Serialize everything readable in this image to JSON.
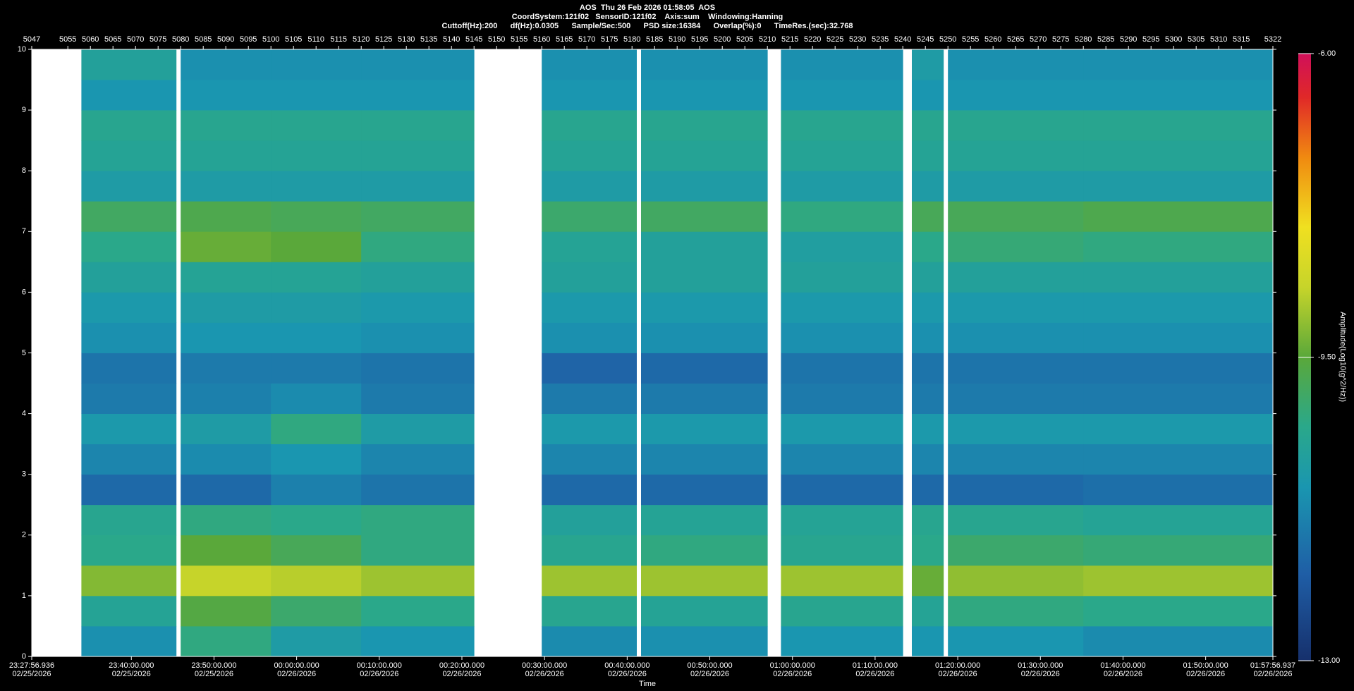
{
  "chart_data": {
    "type": "heatmap",
    "header": [
      "AOS  Thu 26 Feb 2026 01:58:05  AOS",
      "CoordSystem:121f02   SensorID:121f02    Axis:sum    Windowing:Hanning",
      "Cuttoff(Hz):200      df(Hz):0.0305      Sample/Sec:500      PSD size:16384      Overlap(%):0      TimeRes.(sec):32.768"
    ],
    "x_label": "Time",
    "colorbar_label": "Amplitude(Log10(g^2/Hz))",
    "x": [
      5047,
      5058,
      5079,
      5080,
      5100,
      5120,
      5145,
      5160,
      5181,
      5182,
      5210,
      5213,
      5240,
      5242,
      5249,
      5250,
      5280,
      5322
    ],
    "y": [
      0,
      0.5,
      1,
      1.5,
      2,
      2.5,
      3,
      3.5,
      4,
      4.5,
      5,
      5.5,
      6,
      6.5,
      7,
      7.5,
      8,
      8.5,
      9,
      9.5,
      10
    ],
    "values": [
      [
        null,
        -11.1,
        null,
        -10.2,
        -10.8,
        -11.0,
        null,
        -11.2,
        null,
        -11.1,
        null,
        -11.0,
        null,
        -11.0,
        null,
        -11.0,
        -11.2
      ],
      [
        null,
        -10.5,
        null,
        -9.6,
        -10.0,
        -10.3,
        null,
        -10.4,
        null,
        -10.5,
        null,
        -10.4,
        null,
        -10.5,
        null,
        -10.2,
        -10.3
      ],
      [
        null,
        -9.2,
        null,
        -8.7,
        -8.8,
        -9.0,
        null,
        -9.0,
        null,
        -9.0,
        null,
        -9.0,
        null,
        -9.4,
        null,
        -9.1,
        -9.0
      ],
      [
        null,
        -10.3,
        null,
        -9.5,
        -9.8,
        -10.2,
        null,
        -10.4,
        null,
        -10.2,
        null,
        -10.4,
        null,
        -10.3,
        null,
        -10.0,
        -10.1
      ],
      [
        null,
        -10.4,
        null,
        -10.2,
        -10.3,
        -10.2,
        null,
        -10.6,
        null,
        -10.5,
        null,
        -10.5,
        null,
        -10.4,
        null,
        -10.4,
        -10.5
      ],
      [
        null,
        -11.8,
        null,
        -11.8,
        -11.4,
        -11.6,
        null,
        -11.8,
        null,
        -11.8,
        null,
        -11.8,
        null,
        -11.8,
        null,
        -11.8,
        -11.7
      ],
      [
        null,
        -11.3,
        null,
        -11.2,
        -11.0,
        -11.3,
        null,
        -11.3,
        null,
        -11.3,
        null,
        -11.3,
        null,
        -11.3,
        null,
        -11.3,
        -11.3
      ],
      [
        null,
        -10.9,
        null,
        -10.8,
        -10.2,
        -10.8,
        null,
        -10.9,
        null,
        -10.9,
        null,
        -10.9,
        null,
        -10.9,
        null,
        -10.9,
        -10.9
      ],
      [
        null,
        -11.5,
        null,
        -11.4,
        -11.2,
        -11.5,
        null,
        -11.5,
        null,
        -11.5,
        null,
        -11.5,
        null,
        -11.5,
        null,
        -11.5,
        -11.5
      ],
      [
        null,
        -11.6,
        null,
        -11.5,
        -11.5,
        -11.6,
        null,
        -11.9,
        null,
        -11.8,
        null,
        -11.6,
        null,
        -11.6,
        null,
        -11.6,
        -11.6
      ],
      [
        null,
        -11.1,
        null,
        -11.0,
        -11.0,
        -11.1,
        null,
        -11.1,
        null,
        -11.1,
        null,
        -11.1,
        null,
        -11.1,
        null,
        -11.1,
        -11.1
      ],
      [
        null,
        -10.9,
        null,
        -10.8,
        -10.8,
        -10.9,
        null,
        -10.9,
        null,
        -10.9,
        null,
        -10.9,
        null,
        -10.9,
        null,
        -10.9,
        -10.9
      ],
      [
        null,
        -10.6,
        null,
        -10.5,
        -10.5,
        -10.6,
        null,
        -10.6,
        null,
        -10.6,
        null,
        -10.6,
        null,
        -10.6,
        null,
        -10.6,
        -10.6
      ],
      [
        null,
        -10.3,
        null,
        -9.4,
        -9.5,
        -10.2,
        null,
        -10.5,
        null,
        -10.6,
        null,
        -10.7,
        null,
        -10.3,
        null,
        -10.1,
        -10.2
      ],
      [
        null,
        -9.9,
        null,
        -9.7,
        -9.8,
        -9.9,
        null,
        -10.0,
        null,
        -9.9,
        null,
        -10.2,
        null,
        -9.8,
        null,
        -9.8,
        -9.7
      ],
      [
        null,
        -10.8,
        null,
        -10.8,
        -10.8,
        -10.8,
        null,
        -10.8,
        null,
        -10.8,
        null,
        -10.8,
        null,
        -10.8,
        null,
        -10.8,
        -10.8
      ],
      [
        null,
        -10.5,
        null,
        -10.5,
        -10.5,
        -10.5,
        null,
        -10.5,
        null,
        -10.5,
        null,
        -10.5,
        null,
        -10.5,
        null,
        -10.5,
        -10.5
      ],
      [
        null,
        -10.4,
        null,
        -10.4,
        -10.4,
        -10.4,
        null,
        -10.4,
        null,
        -10.4,
        null,
        -10.4,
        null,
        -10.4,
        null,
        -10.4,
        -10.4
      ],
      [
        null,
        -11.0,
        null,
        -11.0,
        -11.0,
        -11.0,
        null,
        -11.0,
        null,
        -11.0,
        null,
        -11.0,
        null,
        -11.0,
        null,
        -11.0,
        -11.0
      ],
      [
        null,
        -10.6,
        null,
        -11.1,
        -11.1,
        -11.1,
        null,
        -11.1,
        null,
        -11.1,
        null,
        -11.1,
        null,
        -10.8,
        null,
        -11.1,
        -11.1
      ]
    ],
    "xlim": [
      5047,
      5322
    ],
    "ylim": [
      0,
      10
    ],
    "yticks": [
      0,
      1,
      2,
      3,
      4,
      5,
      6,
      7,
      8,
      9,
      10
    ],
    "x2ticks": [
      5047,
      5055,
      5060,
      5065,
      5070,
      5075,
      5080,
      5085,
      5090,
      5095,
      5100,
      5105,
      5110,
      5115,
      5120,
      5125,
      5130,
      5135,
      5140,
      5145,
      5150,
      5155,
      5160,
      5165,
      5170,
      5175,
      5180,
      5185,
      5190,
      5195,
      5200,
      5205,
      5210,
      5215,
      5220,
      5225,
      5230,
      5235,
      5240,
      5245,
      5250,
      5255,
      5260,
      5265,
      5270,
      5275,
      5280,
      5285,
      5290,
      5295,
      5300,
      5305,
      5310,
      5315,
      5322
    ],
    "xticks": [
      {
        "value": 5047,
        "label": "23:27:56.936",
        "date": "02/25/2026"
      },
      {
        "value": 5069.07,
        "label": "23:40:00.000",
        "date": "02/25/2026"
      },
      {
        "value": 5087.38,
        "label": "23:50:00.000",
        "date": "02/25/2026"
      },
      {
        "value": 5105.69,
        "label": "00:00:00.000",
        "date": "02/26/2026"
      },
      {
        "value": 5124.0,
        "label": "00:10:00.000",
        "date": "02/26/2026"
      },
      {
        "value": 5142.31,
        "label": "00:20:00.000",
        "date": "02/26/2026"
      },
      {
        "value": 5160.62,
        "label": "00:30:00.000",
        "date": "02/26/2026"
      },
      {
        "value": 5178.93,
        "label": "00:40:00.000",
        "date": "02/26/2026"
      },
      {
        "value": 5197.24,
        "label": "00:50:00.000",
        "date": "02/26/2026"
      },
      {
        "value": 5215.55,
        "label": "01:00:00.000",
        "date": "02/26/2026"
      },
      {
        "value": 5233.86,
        "label": "01:10:00.000",
        "date": "02/26/2026"
      },
      {
        "value": 5252.17,
        "label": "01:20:00.000",
        "date": "02/26/2026"
      },
      {
        "value": 5270.48,
        "label": "01:30:00.000",
        "date": "02/26/2026"
      },
      {
        "value": 5288.79,
        "label": "01:40:00.000",
        "date": "02/26/2026"
      },
      {
        "value": 5307.1,
        "label": "01:50:00.000",
        "date": "02/26/2026"
      },
      {
        "value": 5322,
        "label": "01:57:56.937",
        "date": "02/26/2026"
      }
    ],
    "zlim": [
      -13,
      -6
    ],
    "zticks": [
      {
        "value": -6,
        "label": "-6.00"
      },
      {
        "value": -9.5,
        "label": "-9.50"
      },
      {
        "value": -13,
        "label": "-13.00"
      }
    ],
    "colorscale": [
      [
        -13,
        "#16306c"
      ],
      [
        -12,
        "#1f5ea6"
      ],
      [
        -11,
        "#1a96b0"
      ],
      [
        -10.3,
        "#2aa88a"
      ],
      [
        -9.5,
        "#5aa83a"
      ],
      [
        -8.7,
        "#c6d42a"
      ],
      [
        -8,
        "#f0e020"
      ],
      [
        -7.2,
        "#f08a10"
      ],
      [
        -6.5,
        "#e02828"
      ],
      [
        -6,
        "#d0105a"
      ]
    ],
    "gap_color": "#ffffff"
  }
}
